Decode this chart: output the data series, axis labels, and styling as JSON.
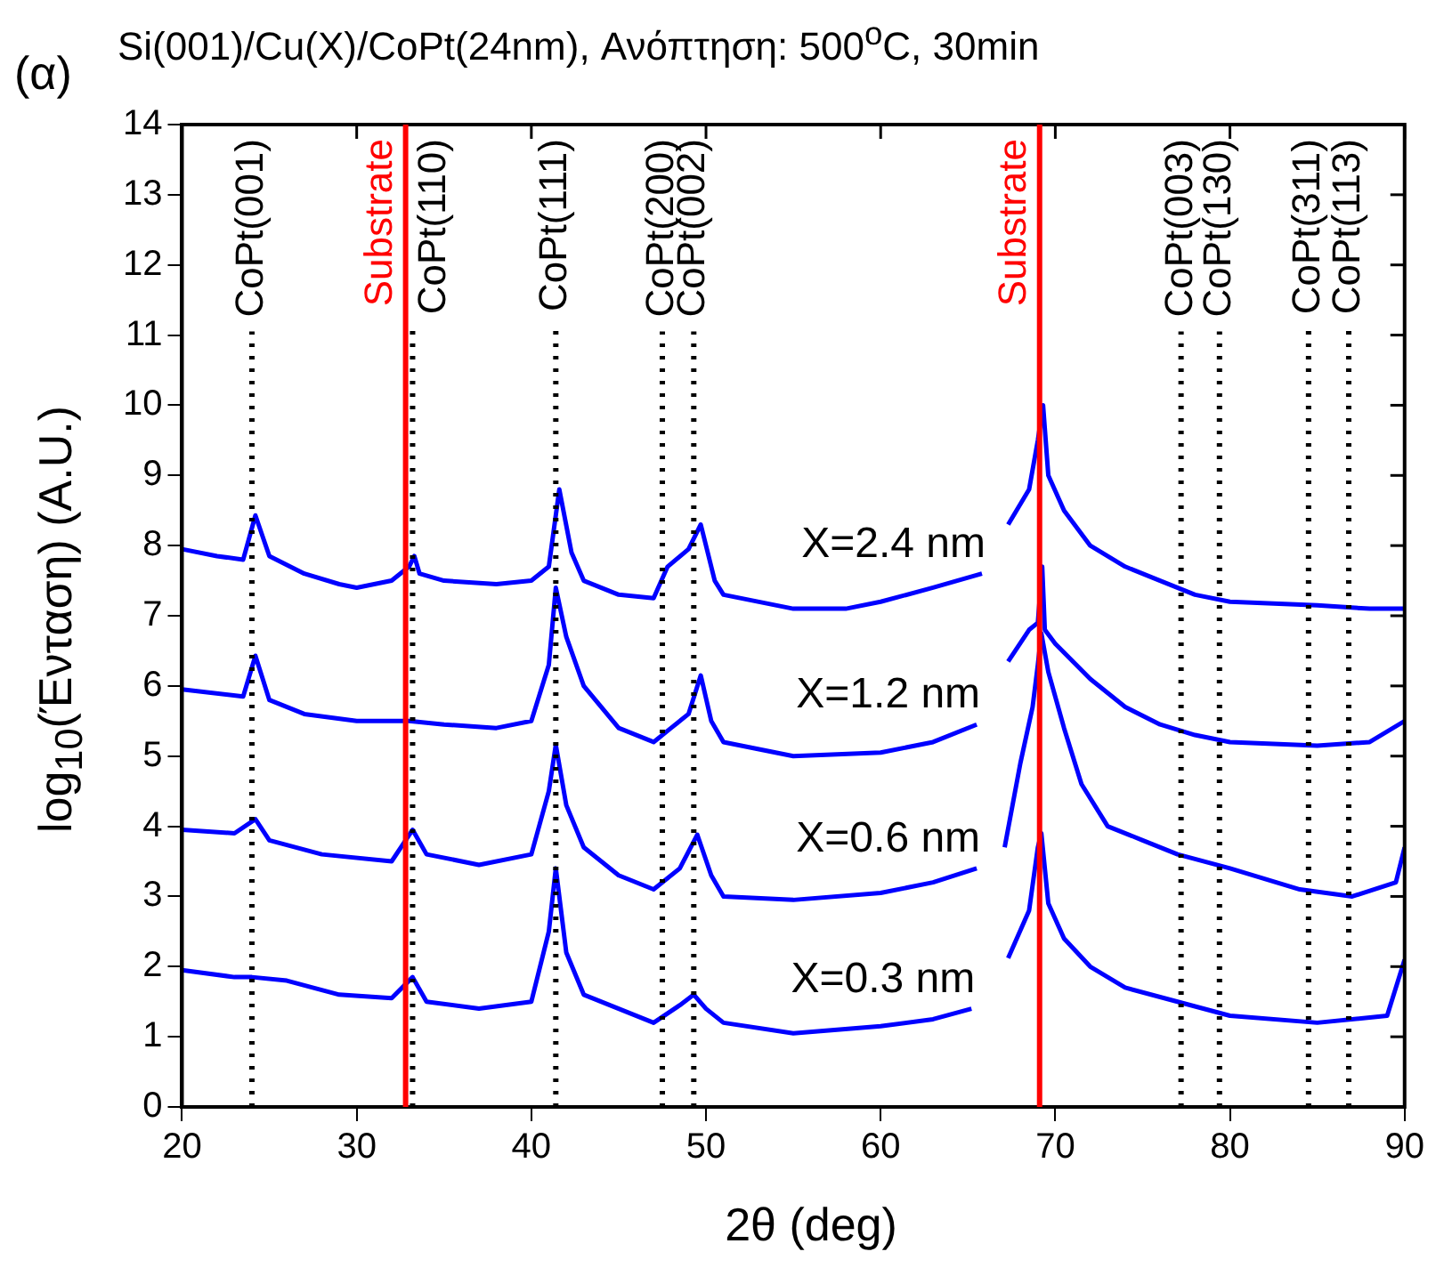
{
  "chart_data": {
    "type": "line",
    "title": "Si(001)/Cu(X)/CoPt(24nm),  Ανόπτηση: 500$^{o}$C, 30min",
    "xlabel": "2θ (deg)",
    "ylabel": "log$_{10}$(Ένταση) (A.U.)",
    "annotations": [
      "(α)"
    ],
    "xlim": [
      20,
      90
    ],
    "xticks": [
      20,
      30,
      40,
      50,
      60,
      70,
      80,
      90
    ],
    "ylim": [
      0,
      14
    ],
    "yticks": [
      0,
      1,
      2,
      3,
      4,
      5,
      6,
      7,
      8,
      9,
      10,
      11,
      12,
      13,
      14
    ],
    "grid": false,
    "legend": false,
    "marker": "none",
    "line_style": "solid",
    "series": [
      {
        "name": "X=2.4 nm",
        "color": "#0000ff",
        "x": [
          20,
          22,
          23.5,
          24.2,
          25,
          27,
          29,
          30,
          32,
          33,
          33.3,
          33.6,
          35,
          38,
          40,
          41,
          41.6,
          42.3,
          43,
          45,
          47,
          47.8,
          49,
          49.7,
          50.5,
          51,
          55,
          58,
          60,
          63,
          65.8,
          66.5,
          67.3,
          68.5,
          69,
          69.3,
          69.6,
          70.5,
          72,
          74,
          76,
          78,
          80,
          85,
          88,
          90
        ],
        "values": [
          7.95,
          7.85,
          7.8,
          8.43,
          7.85,
          7.6,
          7.45,
          7.4,
          7.5,
          7.7,
          7.85,
          7.6,
          7.5,
          7.45,
          7.5,
          7.7,
          8.8,
          7.9,
          7.5,
          7.3,
          7.25,
          7.7,
          7.95,
          8.3,
          7.5,
          7.3,
          7.1,
          7.1,
          7.2,
          7.4,
          7.6,
          null,
          8.3,
          8.8,
          9.5,
          10.0,
          9.0,
          8.5,
          8.0,
          7.7,
          7.5,
          7.3,
          7.2,
          7.15,
          7.1,
          7.1
        ]
      },
      {
        "name": "X=1.2 nm",
        "color": "#0000ff",
        "x": [
          20,
          23.5,
          24.2,
          25,
          27,
          30,
          33,
          35,
          38,
          40,
          41,
          41.4,
          42,
          43,
          45,
          47,
          48,
          49,
          49.7,
          50.3,
          51,
          55,
          60,
          63,
          65.5,
          66.4,
          67.3,
          68.5,
          69,
          69.25,
          69.4,
          70,
          72,
          74,
          76,
          78,
          80,
          85,
          88,
          90
        ],
        "values": [
          5.95,
          5.85,
          6.43,
          5.8,
          5.6,
          5.5,
          5.5,
          5.45,
          5.4,
          5.5,
          6.3,
          7.4,
          6.7,
          6.0,
          5.4,
          5.2,
          5.4,
          5.6,
          6.15,
          5.5,
          5.2,
          5.0,
          5.05,
          5.2,
          5.45,
          null,
          6.35,
          6.8,
          6.9,
          7.7,
          6.8,
          6.6,
          6.1,
          5.7,
          5.45,
          5.3,
          5.2,
          5.15,
          5.2,
          5.5
        ]
      },
      {
        "name": "X=0.6 nm",
        "color": "#0000ff",
        "x": [
          20,
          23,
          24.2,
          25,
          28,
          32,
          33.2,
          34,
          37,
          40,
          41,
          41.4,
          42,
          43,
          45,
          47,
          48.5,
          49.5,
          50.3,
          51,
          55,
          60,
          63,
          65.5,
          66.3,
          67.1,
          68,
          68.7,
          69,
          69.2,
          69.6,
          70.5,
          71.5,
          73,
          75,
          77,
          80,
          84,
          87,
          89.5,
          90
        ],
        "values": [
          3.95,
          3.9,
          4.1,
          3.8,
          3.6,
          3.5,
          3.95,
          3.6,
          3.45,
          3.6,
          4.5,
          5.16,
          4.3,
          3.7,
          3.3,
          3.1,
          3.4,
          3.88,
          3.3,
          3.0,
          2.95,
          3.05,
          3.2,
          3.4,
          null,
          3.7,
          4.9,
          5.7,
          6.3,
          6.75,
          6.2,
          5.4,
          4.6,
          4.0,
          3.8,
          3.6,
          3.4,
          3.1,
          3.0,
          3.2,
          3.7
        ]
      },
      {
        "name": "X=0.3 nm",
        "color": "#0000ff",
        "x": [
          20,
          23,
          24,
          26,
          29,
          32,
          33.2,
          34,
          37,
          40,
          41,
          41.4,
          42,
          43,
          45,
          47,
          48.5,
          49.3,
          50,
          51,
          55,
          60,
          63,
          65.2,
          66.2,
          67.3,
          68.5,
          69,
          69.2,
          69.6,
          70.5,
          72,
          74,
          77,
          80,
          85,
          89,
          90
        ],
        "values": [
          1.95,
          1.85,
          1.85,
          1.8,
          1.6,
          1.55,
          1.85,
          1.5,
          1.4,
          1.5,
          2.5,
          3.4,
          2.2,
          1.6,
          1.4,
          1.2,
          1.45,
          1.6,
          1.4,
          1.2,
          1.05,
          1.15,
          1.25,
          1.4,
          null,
          2.12,
          2.8,
          3.7,
          3.9,
          2.9,
          2.4,
          2.0,
          1.7,
          1.5,
          1.3,
          1.2,
          1.3,
          2.1
        ]
      }
    ],
    "ref_lines": [
      {
        "axis": "x",
        "value": 24.0,
        "label": "CoPt(001)",
        "color": "#000000",
        "line_style": "dotted"
      },
      {
        "axis": "x",
        "value": 32.8,
        "label": "Substrate",
        "color": "#ff0000",
        "line_style": "solid"
      },
      {
        "axis": "x",
        "value": 33.2,
        "label": "CoPt(110)",
        "color": "#000000",
        "line_style": "dotted"
      },
      {
        "axis": "x",
        "value": 41.4,
        "label": "CoPt(111)",
        "color": "#000000",
        "line_style": "dotted"
      },
      {
        "axis": "x",
        "value": 47.5,
        "label": "CoPt(200)",
        "color": "#000000",
        "line_style": "dotted"
      },
      {
        "axis": "x",
        "value": 49.3,
        "label": "CoPt(002)",
        "color": "#000000",
        "line_style": "dotted"
      },
      {
        "axis": "x",
        "value": 69.1,
        "label": "Substrate",
        "color": "#ff0000",
        "line_style": "solid"
      },
      {
        "axis": "x",
        "value": 77.2,
        "label": "CoPt(003)",
        "color": "#000000",
        "line_style": "dotted"
      },
      {
        "axis": "x",
        "value": 79.4,
        "label": "CoPt(130)",
        "color": "#000000",
        "line_style": "dotted"
      },
      {
        "axis": "x",
        "value": 84.5,
        "label": "CoPt(311)",
        "color": "#000000",
        "line_style": "dotted"
      },
      {
        "axis": "x",
        "value": 86.8,
        "label": "CoPt(113)",
        "color": "#000000",
        "line_style": "dotted"
      }
    ]
  }
}
